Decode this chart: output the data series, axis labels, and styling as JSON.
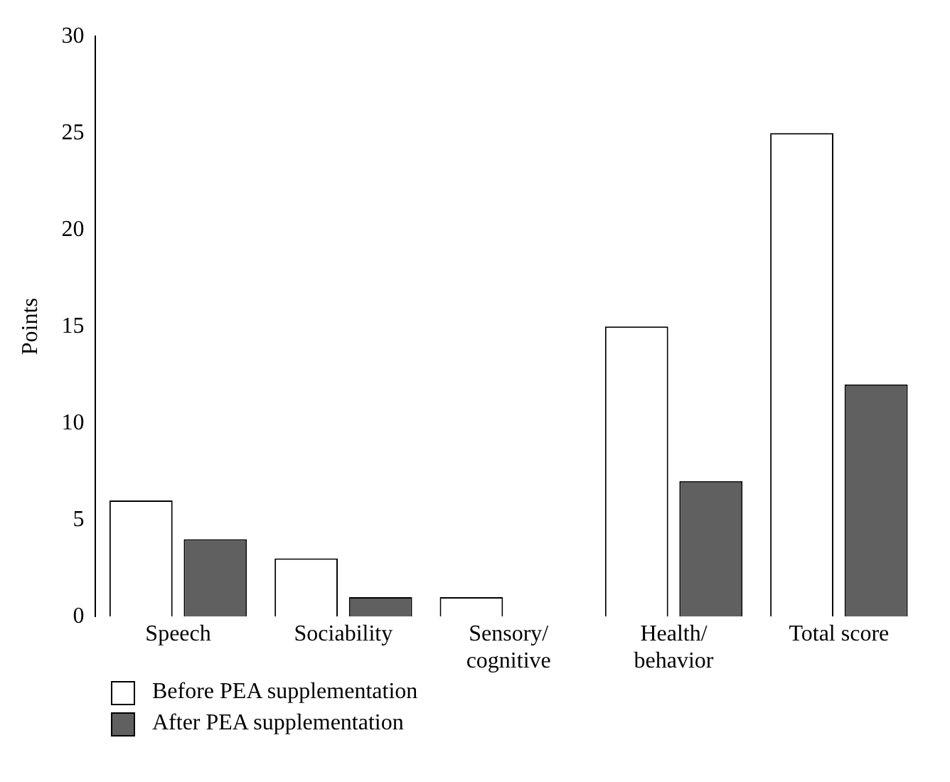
{
  "chart_data": {
    "type": "bar",
    "ylabel": "Points",
    "categories": [
      "Speech",
      "Sociability",
      "Sensory/cognitive",
      "Health/behavior",
      "Total score"
    ],
    "series": [
      {
        "name": "Before PEA supplementation",
        "color": "#ffffff",
        "values": [
          6,
          3,
          1,
          15,
          25
        ]
      },
      {
        "name": "After PEA supplementation",
        "color": "#606060",
        "values": [
          4,
          1,
          0,
          7,
          12
        ]
      }
    ],
    "ylim": [
      0,
      30
    ],
    "yticks": [
      0,
      5,
      10,
      15,
      20,
      25,
      30
    ],
    "grid": false,
    "legend": "bottom left"
  }
}
